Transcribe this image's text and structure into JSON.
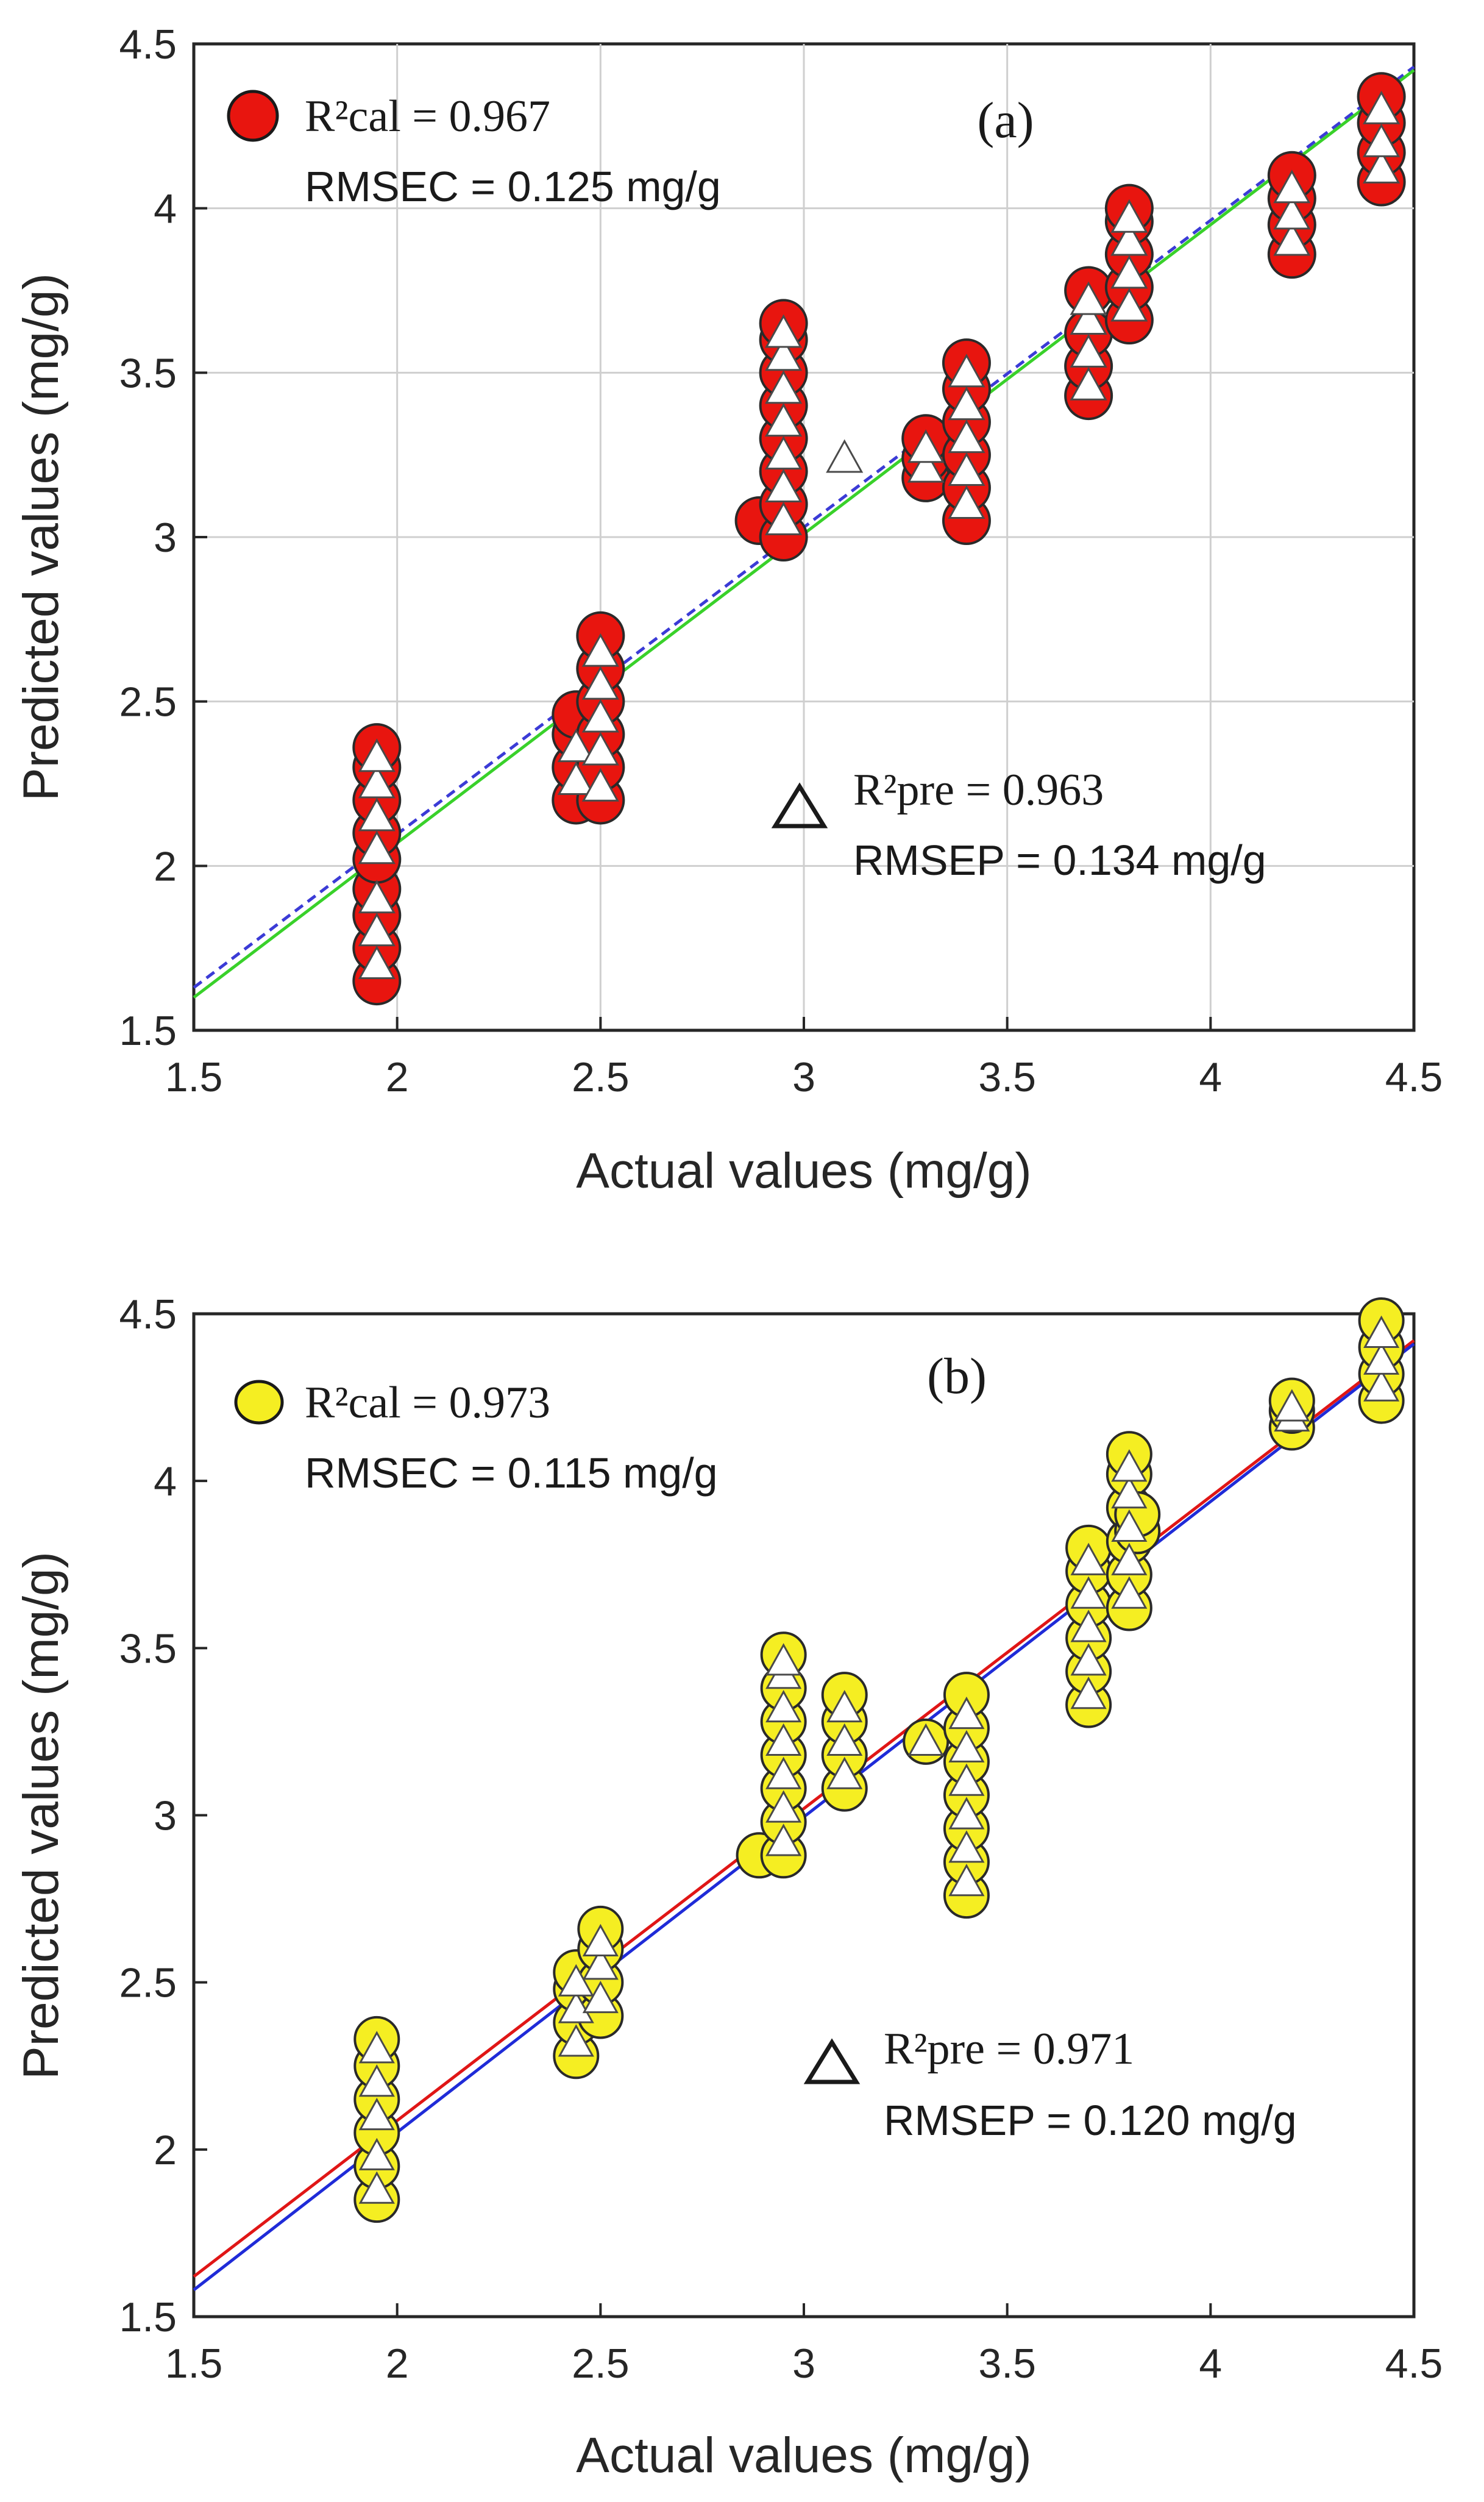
{
  "chart_data": [
    {
      "type": "scatter",
      "panel_label": "(a)",
      "xlabel": "Actual values (mg/g)",
      "ylabel": "Predicted values (mg/g)",
      "xlim": [
        1.5,
        4.5
      ],
      "ylim": [
        1.5,
        4.5
      ],
      "xticks": [
        "1.5",
        "2",
        "2.5",
        "3",
        "3.5",
        "4",
        "4.5"
      ],
      "yticks": [
        "1.5",
        "2",
        "2.5",
        "3",
        "3.5",
        "4",
        "4.5"
      ],
      "grid": true,
      "colors": {
        "cal_fill": "#e8150f",
        "pre_fill": "#ffffff",
        "line_cal": "#3b3bd6",
        "line_pre": "#39d12a"
      },
      "annotations": {
        "cal_r2": "R²cal = 0.967",
        "cal_rmse": "RMSEC = 0.125 mg/g",
        "pre_r2": "R²pre = 0.963",
        "pre_rmse": "RMSEP = 0.134 mg/g"
      },
      "series": [
        {
          "name": "Calibration",
          "marker": "circle",
          "points": [
            [
              1.95,
              1.65
            ],
            [
              1.95,
              1.75
            ],
            [
              1.95,
              1.85
            ],
            [
              1.95,
              1.93
            ],
            [
              1.95,
              2.02
            ],
            [
              1.95,
              2.1
            ],
            [
              1.95,
              2.2
            ],
            [
              1.95,
              2.3
            ],
            [
              1.95,
              2.36
            ],
            [
              2.44,
              2.2
            ],
            [
              2.44,
              2.3
            ],
            [
              2.44,
              2.4
            ],
            [
              2.44,
              2.46
            ],
            [
              2.5,
              2.2
            ],
            [
              2.5,
              2.3
            ],
            [
              2.5,
              2.4
            ],
            [
              2.5,
              2.5
            ],
            [
              2.5,
              2.6
            ],
            [
              2.5,
              2.7
            ],
            [
              2.89,
              3.05
            ],
            [
              2.95,
              3.0
            ],
            [
              2.95,
              3.1
            ],
            [
              2.95,
              3.2
            ],
            [
              2.95,
              3.3
            ],
            [
              2.95,
              3.4
            ],
            [
              2.95,
              3.5
            ],
            [
              2.95,
              3.6
            ],
            [
              2.95,
              3.65
            ],
            [
              3.3,
              3.18
            ],
            [
              3.3,
              3.24
            ],
            [
              3.3,
              3.3
            ],
            [
              3.4,
              3.05
            ],
            [
              3.4,
              3.15
            ],
            [
              3.4,
              3.25
            ],
            [
              3.4,
              3.35
            ],
            [
              3.4,
              3.45
            ],
            [
              3.4,
              3.53
            ],
            [
              3.7,
              3.43
            ],
            [
              3.7,
              3.52
            ],
            [
              3.7,
              3.62
            ],
            [
              3.7,
              3.75
            ],
            [
              3.8,
              3.66
            ],
            [
              3.8,
              3.76
            ],
            [
              3.8,
              3.86
            ],
            [
              3.8,
              3.96
            ],
            [
              3.8,
              4.0
            ],
            [
              4.2,
              3.86
            ],
            [
              4.2,
              3.95
            ],
            [
              4.2,
              4.03
            ],
            [
              4.2,
              4.1
            ],
            [
              4.42,
              4.08
            ],
            [
              4.42,
              4.17
            ],
            [
              4.42,
              4.26
            ],
            [
              4.42,
              4.34
            ]
          ]
        },
        {
          "name": "Prediction",
          "marker": "triangle",
          "points": [
            [
              1.95,
              1.7
            ],
            [
              1.95,
              1.8
            ],
            [
              1.95,
              1.9
            ],
            [
              1.95,
              2.05
            ],
            [
              1.95,
              2.15
            ],
            [
              1.95,
              2.25
            ],
            [
              1.95,
              2.33
            ],
            [
              2.44,
              2.26
            ],
            [
              2.44,
              2.36
            ],
            [
              2.5,
              2.24
            ],
            [
              2.5,
              2.35
            ],
            [
              2.5,
              2.45
            ],
            [
              2.5,
              2.55
            ],
            [
              2.5,
              2.65
            ],
            [
              2.95,
              3.05
            ],
            [
              2.95,
              3.15
            ],
            [
              2.95,
              3.25
            ],
            [
              2.95,
              3.35
            ],
            [
              2.95,
              3.45
            ],
            [
              2.95,
              3.55
            ],
            [
              2.95,
              3.62
            ],
            [
              3.1,
              3.24
            ],
            [
              3.3,
              3.21
            ],
            [
              3.3,
              3.27
            ],
            [
              3.4,
              3.1
            ],
            [
              3.4,
              3.2
            ],
            [
              3.4,
              3.3
            ],
            [
              3.4,
              3.4
            ],
            [
              3.4,
              3.5
            ],
            [
              3.7,
              3.46
            ],
            [
              3.7,
              3.56
            ],
            [
              3.7,
              3.66
            ],
            [
              3.7,
              3.72
            ],
            [
              3.8,
              3.7
            ],
            [
              3.8,
              3.8
            ],
            [
              3.8,
              3.9
            ],
            [
              3.8,
              3.97
            ],
            [
              4.2,
              3.9
            ],
            [
              4.2,
              3.98
            ],
            [
              4.2,
              4.06
            ],
            [
              4.42,
              4.12
            ],
            [
              4.42,
              4.2
            ],
            [
              4.42,
              4.3
            ]
          ]
        }
      ],
      "lines": [
        {
          "name": "cal fit",
          "x": [
            1.5,
            4.5
          ],
          "y": [
            1.63,
            4.43
          ],
          "style": "dashed"
        },
        {
          "name": "pre fit",
          "x": [
            1.5,
            4.5
          ],
          "y": [
            1.6,
            4.42
          ],
          "style": "solid"
        }
      ]
    },
    {
      "type": "scatter",
      "panel_label": "(b)",
      "xlabel": "Actual values (mg/g)",
      "ylabel": "Predicted values (mg/g)",
      "xlim": [
        1.5,
        4.5
      ],
      "ylim": [
        1.5,
        4.5
      ],
      "xticks": [
        "1.5",
        "2",
        "2.5",
        "3",
        "3.5",
        "4",
        "4.5"
      ],
      "yticks": [
        "1.5",
        "2",
        "2.5",
        "3",
        "3.5",
        "4",
        "4.5"
      ],
      "grid": false,
      "colors": {
        "cal_fill": "#f5ee22",
        "pre_fill": "#ffffff",
        "line_cal": "#e01616",
        "line_pre": "#1f2bd8"
      },
      "annotations": {
        "cal_r2": "R²cal = 0.973",
        "cal_rmse": "RMSEC = 0.115 mg/g",
        "pre_r2": "R²pre = 0.971",
        "pre_rmse": "RMSEP = 0.120 mg/g"
      },
      "series": [
        {
          "name": "Calibration",
          "marker": "circle",
          "points": [
            [
              1.95,
              1.85
            ],
            [
              1.95,
              1.95
            ],
            [
              1.95,
              2.05
            ],
            [
              1.95,
              2.15
            ],
            [
              1.95,
              2.25
            ],
            [
              1.95,
              2.33
            ],
            [
              2.44,
              2.28
            ],
            [
              2.44,
              2.38
            ],
            [
              2.44,
              2.48
            ],
            [
              2.44,
              2.53
            ],
            [
              2.5,
              2.4
            ],
            [
              2.5,
              2.5
            ],
            [
              2.5,
              2.6
            ],
            [
              2.5,
              2.66
            ],
            [
              2.89,
              2.88
            ],
            [
              2.95,
              2.88
            ],
            [
              2.95,
              2.98
            ],
            [
              2.95,
              3.08
            ],
            [
              2.95,
              3.18
            ],
            [
              2.95,
              3.28
            ],
            [
              2.95,
              3.38
            ],
            [
              2.95,
              3.48
            ],
            [
              3.1,
              3.08
            ],
            [
              3.1,
              3.18
            ],
            [
              3.1,
              3.28
            ],
            [
              3.1,
              3.36
            ],
            [
              3.3,
              3.22
            ],
            [
              3.4,
              2.76
            ],
            [
              3.4,
              2.86
            ],
            [
              3.4,
              2.96
            ],
            [
              3.4,
              3.06
            ],
            [
              3.4,
              3.16
            ],
            [
              3.4,
              3.26
            ],
            [
              3.4,
              3.36
            ],
            [
              3.7,
              3.33
            ],
            [
              3.7,
              3.43
            ],
            [
              3.7,
              3.53
            ],
            [
              3.7,
              3.63
            ],
            [
              3.7,
              3.73
            ],
            [
              3.7,
              3.8
            ],
            [
              3.8,
              3.62
            ],
            [
              3.8,
              3.72
            ],
            [
              3.8,
              3.82
            ],
            [
              3.8,
              3.92
            ],
            [
              3.8,
              4.02
            ],
            [
              3.8,
              4.08
            ],
            [
              3.82,
              3.85
            ],
            [
              3.82,
              3.9
            ],
            [
              4.2,
              4.16
            ],
            [
              4.2,
              4.21
            ],
            [
              4.2,
              4.24
            ],
            [
              4.42,
              4.24
            ],
            [
              4.42,
              4.32
            ],
            [
              4.42,
              4.4
            ],
            [
              4.42,
              4.48
            ]
          ]
        },
        {
          "name": "Prediction",
          "marker": "triangle",
          "points": [
            [
              1.95,
              1.88
            ],
            [
              1.95,
              1.98
            ],
            [
              1.95,
              2.1
            ],
            [
              1.95,
              2.2
            ],
            [
              1.95,
              2.3
            ],
            [
              2.44,
              2.32
            ],
            [
              2.44,
              2.42
            ],
            [
              2.44,
              2.5
            ],
            [
              2.5,
              2.45
            ],
            [
              2.5,
              2.55
            ],
            [
              2.5,
              2.62
            ],
            [
              2.95,
              2.92
            ],
            [
              2.95,
              3.02
            ],
            [
              2.95,
              3.12
            ],
            [
              2.95,
              3.22
            ],
            [
              2.95,
              3.32
            ],
            [
              2.95,
              3.42
            ],
            [
              2.95,
              3.46
            ],
            [
              3.1,
              3.12
            ],
            [
              3.1,
              3.22
            ],
            [
              3.1,
              3.32
            ],
            [
              3.3,
              3.22
            ],
            [
              3.4,
              2.8
            ],
            [
              3.4,
              2.9
            ],
            [
              3.4,
              3.0
            ],
            [
              3.4,
              3.1
            ],
            [
              3.4,
              3.2
            ],
            [
              3.4,
              3.3
            ],
            [
              3.7,
              3.36
            ],
            [
              3.7,
              3.46
            ],
            [
              3.7,
              3.56
            ],
            [
              3.7,
              3.66
            ],
            [
              3.7,
              3.76
            ],
            [
              3.8,
              3.66
            ],
            [
              3.8,
              3.76
            ],
            [
              3.8,
              3.86
            ],
            [
              3.8,
              3.96
            ],
            [
              3.8,
              4.04
            ],
            [
              4.2,
              4.19
            ],
            [
              4.2,
              4.22
            ],
            [
              4.42,
              4.28
            ],
            [
              4.42,
              4.36
            ],
            [
              4.42,
              4.44
            ]
          ]
        }
      ],
      "lines": [
        {
          "name": "cal fit",
          "x": [
            1.5,
            4.5
          ],
          "y": [
            1.62,
            4.42
          ],
          "style": "solid"
        },
        {
          "name": "pre fit",
          "x": [
            1.5,
            4.5
          ],
          "y": [
            1.58,
            4.41
          ],
          "style": "solid"
        }
      ]
    }
  ]
}
